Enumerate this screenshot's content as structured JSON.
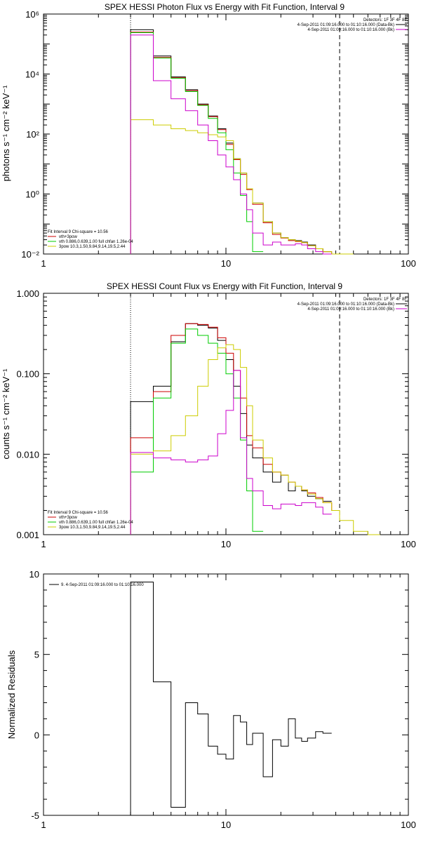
{
  "chart_data": [
    {
      "type": "line",
      "title": "SPEX HESSI Photon Flux vs Energy with Fit Function, Interval 9",
      "ylabel": "photons s⁻¹ cm⁻² keV⁻¹",
      "xlabel": "",
      "xscale": "log",
      "yscale": "log",
      "xlim": [
        1,
        100
      ],
      "ylim": [
        0.01,
        1000000
      ],
      "x_ticks": [
        1,
        10,
        100
      ],
      "x_tick_labels": [
        "1",
        "10",
        "100"
      ],
      "y_ticks": [
        0.01,
        1,
        100,
        10000,
        1000000
      ],
      "y_tick_labels": [
        "10⁻²",
        "10⁰",
        "10²",
        "10⁴",
        "10⁶"
      ],
      "detectors_label": "Detectors: 1F 3F 4F 8F",
      "legend_top": [
        {
          "text": "4-Sep-2011 01:09:16.000 to 01:10:16.000 (Data-Bk)",
          "color": "#000000"
        },
        {
          "text": "4-Sep-2011 01:09:16.000 to 01:10:16.000 (Bk)",
          "color": "#cc00cc"
        }
      ],
      "fit_info": {
        "header": "Fit Interval 9    Chi-square = 10.56",
        "items": [
          {
            "text": "vth+3pow",
            "color": "#cc0000"
          },
          {
            "text": "vth 0.886,0.639,1.00  full chfan 1.26e-04",
            "color": "#00cc00"
          },
          {
            "text": "3pow 10.3,1.50,9.84,9.14,19.5,2.44",
            "color": "#cccc00"
          }
        ]
      },
      "bin_edges": [
        3,
        4,
        5,
        6,
        7,
        8,
        9,
        10,
        11,
        12,
        13,
        14,
        16,
        18,
        20,
        22,
        24,
        26,
        28,
        31,
        34,
        38,
        42,
        50
      ],
      "series": [
        {
          "name": "Data-Bk",
          "color": "#000000",
          "values": [
            300000,
            40000,
            8000,
            3000,
            1000,
            400,
            150,
            50,
            15,
            5,
            1.5,
            0.5,
            0.12,
            0.05,
            0.035,
            0.03,
            0.028,
            0.025,
            0.02,
            0.015,
            0.012,
            null,
            null
          ]
        },
        {
          "name": "vth+3pow",
          "color": "#cc0000",
          "values": [
            250000,
            36000,
            7500,
            2800,
            950,
            380,
            140,
            45,
            14,
            4.5,
            1.4,
            0.45,
            0.11,
            0.045,
            0.034,
            0.028,
            0.026,
            0.024,
            0.019,
            0.015,
            0.012,
            0.01,
            null
          ]
        },
        {
          "name": "vth",
          "color": "#00cc00",
          "values": [
            240000,
            34000,
            7200,
            2600,
            900,
            330,
            110,
            30,
            5,
            0.9,
            0.12,
            0.012,
            null,
            null,
            null,
            null,
            null,
            null,
            null,
            null,
            null,
            null,
            null
          ]
        },
        {
          "name": "3pow",
          "color": "#cccc00",
          "values": [
            300,
            200,
            150,
            130,
            110,
            95,
            80,
            60,
            15,
            5,
            1.5,
            0.5,
            0.12,
            0.05,
            0.035,
            0.03,
            0.027,
            0.024,
            0.019,
            0.015,
            0.012,
            0.01,
            0.008
          ]
        },
        {
          "name": "Bk",
          "color": "#cc00cc",
          "values": [
            200000,
            6000,
            1500,
            600,
            200,
            60,
            20,
            8,
            3,
            1,
            0.3,
            0.05,
            0.02,
            0.025,
            0.02,
            0.02,
            0.022,
            0.02,
            0.015,
            0.012,
            0.01,
            null,
            null
          ]
        }
      ],
      "vlines": [
        {
          "x": 3,
          "style": "dotted"
        },
        {
          "x": 42,
          "style": "dashed"
        }
      ]
    },
    {
      "type": "line",
      "title": "SPEX HESSI Count Flux vs Energy with Fit Function, Interval 9",
      "ylabel": "counts s⁻¹ cm⁻² keV⁻¹",
      "xlabel": "",
      "xscale": "log",
      "yscale": "log",
      "xlim": [
        1,
        100
      ],
      "ylim": [
        0.001,
        1
      ],
      "x_ticks": [
        1,
        10,
        100
      ],
      "x_tick_labels": [
        "1",
        "10",
        "100"
      ],
      "y_ticks": [
        0.001,
        0.01,
        0.1,
        1
      ],
      "y_tick_labels": [
        "0.001",
        "0.010",
        "0.100",
        "1.000"
      ],
      "detectors_label": "Detectors: 1F 3F 4F 8F",
      "legend_top": [
        {
          "text": "4-Sep-2011 01:09:16.000 to 01:10:16.000 (Data-Bk)",
          "color": "#000000"
        },
        {
          "text": "4-Sep-2011 01:09:16.000 to 01:10:16.000 (Bk)",
          "color": "#cc00cc"
        }
      ],
      "fit_info": {
        "header": "Fit Interval 9    Chi-square = 10.56",
        "items": [
          {
            "text": "vth+3pow",
            "color": "#cc0000"
          },
          {
            "text": "vth 0.886,0.639,1.00  full chfan 1.26e-04",
            "color": "#00cc00"
          },
          {
            "text": "3pow 10.3,1.50,9.84,9.14,19.5,2.44",
            "color": "#cccc00"
          }
        ]
      },
      "bin_edges": [
        3,
        4,
        5,
        6,
        7,
        8,
        9,
        10,
        11,
        12,
        13,
        14,
        16,
        18,
        20,
        22,
        24,
        26,
        28,
        31,
        34,
        38,
        42,
        50,
        60,
        70
      ],
      "series": [
        {
          "name": "Data-Bk",
          "color": "#000000",
          "values": [
            0.045,
            0.07,
            0.25,
            0.42,
            0.4,
            0.37,
            0.26,
            0.15,
            0.07,
            0.032,
            0.013,
            0.009,
            0.006,
            0.0045,
            0.0055,
            0.0035,
            0.004,
            0.0035,
            0.003,
            0.0028,
            0.0026,
            null,
            null,
            null,
            null
          ]
        },
        {
          "name": "vth+3pow",
          "color": "#cc0000",
          "values": [
            0.016,
            0.06,
            0.3,
            0.42,
            0.41,
            0.38,
            0.28,
            0.18,
            0.11,
            0.05,
            0.017,
            0.012,
            0.0075,
            0.006,
            0.0055,
            0.0045,
            0.004,
            0.0036,
            0.0033,
            0.0029,
            0.0025,
            0.002,
            null,
            null,
            null
          ]
        },
        {
          "name": "vth",
          "color": "#00cc00",
          "values": [
            0.006,
            0.05,
            0.24,
            0.36,
            0.3,
            0.24,
            0.18,
            0.1,
            0.05,
            0.015,
            0.0035,
            0.0011,
            null,
            null,
            null,
            null,
            null,
            null,
            null,
            null,
            null,
            null,
            null,
            null,
            null
          ]
        },
        {
          "name": "3pow",
          "color": "#cccc00",
          "values": [
            0.01,
            0.011,
            0.017,
            0.03,
            0.07,
            0.15,
            0.21,
            0.23,
            0.2,
            0.12,
            0.04,
            0.015,
            0.009,
            0.006,
            0.0055,
            0.0045,
            0.004,
            0.0036,
            0.0032,
            0.0028,
            0.0025,
            0.002,
            0.0015,
            0.0011,
            0.0009
          ]
        },
        {
          "name": "Bk",
          "color": "#cc00cc",
          "values": [
            0.0105,
            0.009,
            0.0085,
            0.008,
            0.0085,
            0.0095,
            0.018,
            0.035,
            0.11,
            0.016,
            0.005,
            0.0035,
            0.0023,
            0.0021,
            0.0024,
            0.0024,
            0.0023,
            0.0025,
            0.0025,
            0.0022,
            0.0018,
            null,
            null,
            null,
            null
          ]
        }
      ],
      "vlines": [
        {
          "x": 3,
          "style": "dotted"
        },
        {
          "x": 42,
          "style": "dashed"
        }
      ]
    },
    {
      "type": "line",
      "title": "",
      "ylabel": "Normalized Residuals",
      "xlabel": "",
      "xscale": "log",
      "yscale": "linear",
      "xlim": [
        1,
        100
      ],
      "ylim": [
        -5,
        10
      ],
      "x_ticks": [
        1,
        10,
        100
      ],
      "x_tick_labels": [
        "1",
        "10",
        "100"
      ],
      "y_ticks": [
        -5,
        0,
        5,
        10
      ],
      "y_tick_labels": [
        "-5",
        "0",
        "5",
        "10"
      ],
      "legend": [
        {
          "text": "9.  4-Sep-2011 01:09:16.000 to 01:10:16.000",
          "color": "#000000"
        }
      ],
      "bin_edges": [
        3,
        4,
        5,
        6,
        7,
        8,
        9,
        10,
        11,
        12,
        13,
        14,
        16,
        18,
        20,
        22,
        24,
        26,
        28,
        31,
        34,
        38,
        42
      ],
      "series": [
        {
          "color": "#000000",
          "values": [
            9.5,
            3.3,
            -4.5,
            2.0,
            1.3,
            -0.7,
            -1.2,
            -1.5,
            1.2,
            0.8,
            -0.6,
            0.1,
            -2.6,
            -0.3,
            -0.7,
            1.0,
            -0.2,
            -0.4,
            -0.2,
            0.2,
            0.1,
            null
          ]
        }
      ]
    }
  ]
}
